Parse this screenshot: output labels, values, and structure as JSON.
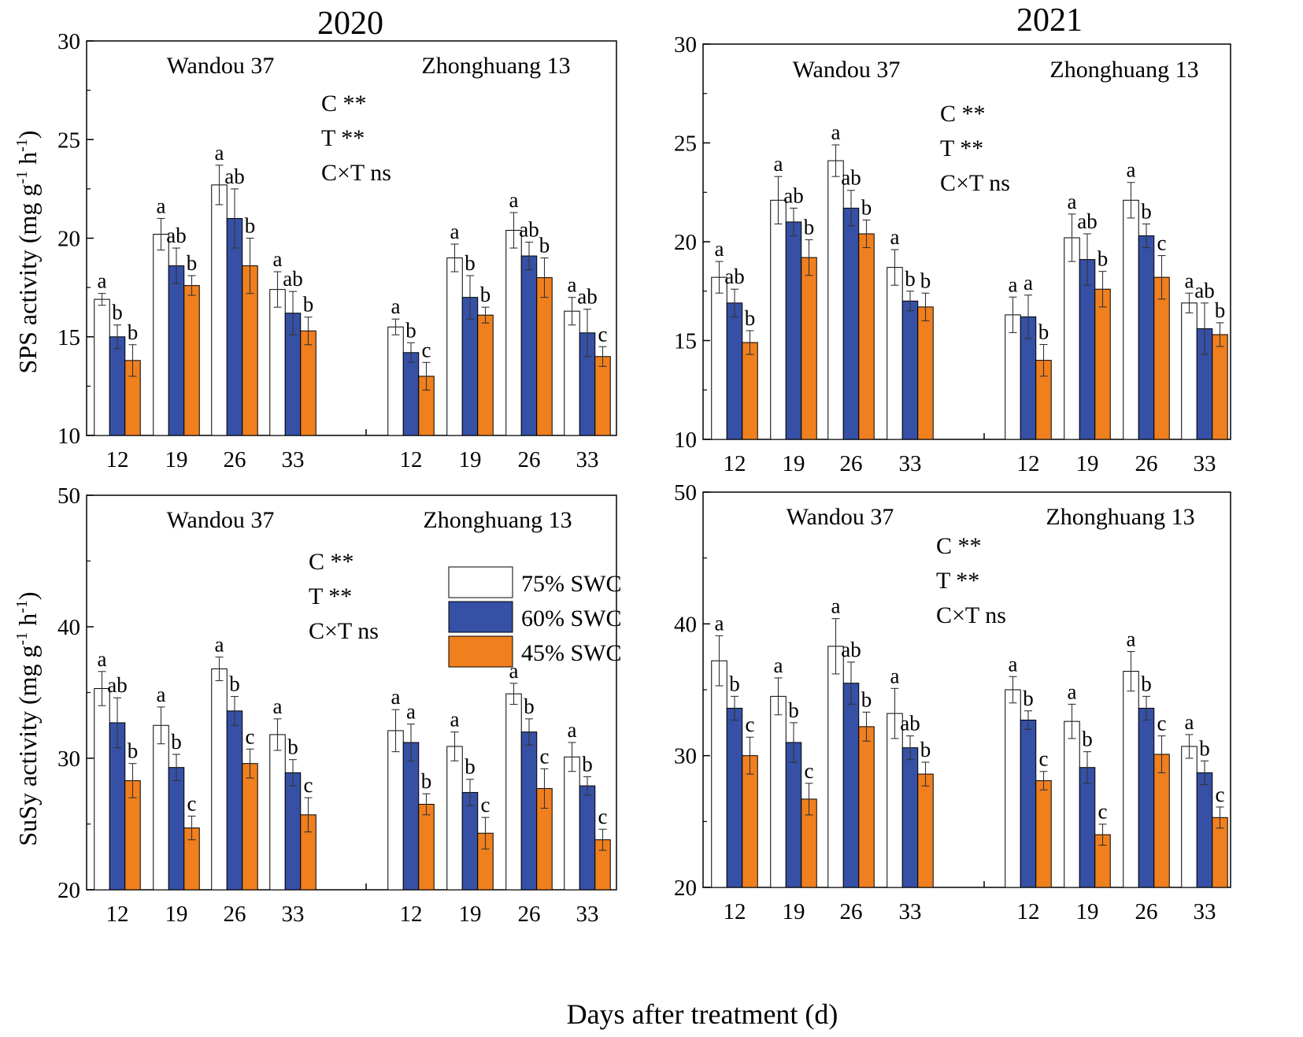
{
  "figure": {
    "x_axis_label": "Days after treatment (d)",
    "colors": {
      "SWC75": "#ffffff",
      "SWC60": "#3550a5",
      "SWC45": "#f07f1e",
      "axis": "#000000"
    }
  },
  "chart_data": [
    {
      "id": "sps-2020",
      "type": "bar",
      "title": "2020",
      "ylabel": "SPS activity (mg g",
      "ylim": [
        10,
        30
      ],
      "yticks": [
        10,
        15,
        20,
        25,
        30
      ],
      "cultivars": [
        "Wandou 37",
        "Zhonghuang 13"
      ],
      "categories": [
        "12",
        "19",
        "26",
        "33"
      ],
      "stats": [
        "C **",
        "T **",
        "C×T ns"
      ],
      "groups": [
        {
          "cultivar": "Wandou 37",
          "day": "12",
          "values": [
            16.9,
            15.0,
            13.8
          ],
          "errors": [
            0.3,
            0.6,
            0.8
          ],
          "letters": [
            "a",
            "b",
            "b"
          ]
        },
        {
          "cultivar": "Wandou 37",
          "day": "19",
          "values": [
            20.2,
            18.6,
            17.6
          ],
          "errors": [
            0.8,
            0.9,
            0.5
          ],
          "letters": [
            "a",
            "ab",
            "b"
          ]
        },
        {
          "cultivar": "Wandou 37",
          "day": "26",
          "values": [
            22.7,
            21.0,
            18.6
          ],
          "errors": [
            1.0,
            1.5,
            1.4
          ],
          "letters": [
            "a",
            "ab",
            "b"
          ]
        },
        {
          "cultivar": "Wandou 37",
          "day": "33",
          "values": [
            17.4,
            16.2,
            15.3
          ],
          "errors": [
            0.9,
            1.1,
            0.7
          ],
          "letters": [
            "a",
            "ab",
            "b"
          ]
        },
        {
          "cultivar": "Zhonghuang 13",
          "day": "12",
          "values": [
            15.5,
            14.2,
            13.0
          ],
          "errors": [
            0.4,
            0.5,
            0.7
          ],
          "letters": [
            "a",
            "b",
            "c"
          ]
        },
        {
          "cultivar": "Zhonghuang 13",
          "day": "19",
          "values": [
            19.0,
            17.0,
            16.1
          ],
          "errors": [
            0.7,
            1.1,
            0.4
          ],
          "letters": [
            "a",
            "b",
            "b"
          ]
        },
        {
          "cultivar": "Zhonghuang 13",
          "day": "26",
          "values": [
            20.4,
            19.1,
            18.0
          ],
          "errors": [
            0.9,
            0.7,
            1.0
          ],
          "letters": [
            "a",
            "ab",
            "b"
          ]
        },
        {
          "cultivar": "Zhonghuang 13",
          "day": "33",
          "values": [
            16.3,
            15.2,
            14.0
          ],
          "errors": [
            0.7,
            1.2,
            0.5
          ],
          "letters": [
            "a",
            "ab",
            "c"
          ]
        }
      ]
    },
    {
      "id": "sps-2021",
      "type": "bar",
      "title": "2021",
      "ylabel": "",
      "ylim": [
        10,
        30
      ],
      "yticks": [
        10,
        15,
        20,
        25,
        30
      ],
      "cultivars": [
        "Wandou 37",
        "Zhonghuang 13"
      ],
      "categories": [
        "12",
        "19",
        "26",
        "33"
      ],
      "stats": [
        "C **",
        "T **",
        "C×T ns"
      ],
      "groups": [
        {
          "cultivar": "Wandou 37",
          "day": "12",
          "values": [
            18.2,
            16.9,
            14.9
          ],
          "errors": [
            0.8,
            0.7,
            0.6
          ],
          "letters": [
            "a",
            "ab",
            "b"
          ]
        },
        {
          "cultivar": "Wandou 37",
          "day": "19",
          "values": [
            22.1,
            21.0,
            19.2
          ],
          "errors": [
            1.2,
            0.7,
            0.9
          ],
          "letters": [
            "a",
            "ab",
            "b"
          ]
        },
        {
          "cultivar": "Wandou 37",
          "day": "26",
          "values": [
            24.1,
            21.7,
            20.4
          ],
          "errors": [
            0.8,
            0.9,
            0.7
          ],
          "letters": [
            "a",
            "ab",
            "b"
          ]
        },
        {
          "cultivar": "Wandou 37",
          "day": "33",
          "values": [
            18.7,
            17.0,
            16.7
          ],
          "errors": [
            0.9,
            0.5,
            0.7
          ],
          "letters": [
            "a",
            "b",
            "b"
          ]
        },
        {
          "cultivar": "Zhonghuang 13",
          "day": "12",
          "values": [
            16.3,
            16.2,
            14.0
          ],
          "errors": [
            0.9,
            1.1,
            0.8
          ],
          "letters": [
            "a",
            "a",
            "b"
          ]
        },
        {
          "cultivar": "Zhonghuang 13",
          "day": "19",
          "values": [
            20.2,
            19.1,
            17.6
          ],
          "errors": [
            1.2,
            1.3,
            0.9
          ],
          "letters": [
            "a",
            "ab",
            "b"
          ]
        },
        {
          "cultivar": "Zhonghuang 13",
          "day": "26",
          "values": [
            22.1,
            20.3,
            18.2
          ],
          "errors": [
            0.9,
            0.6,
            1.1
          ],
          "letters": [
            "a",
            "b",
            "c"
          ]
        },
        {
          "cultivar": "Zhonghuang 13",
          "day": "33",
          "values": [
            16.9,
            15.6,
            15.3
          ],
          "errors": [
            0.5,
            1.3,
            0.6
          ],
          "letters": [
            "a",
            "ab",
            "b"
          ]
        }
      ]
    },
    {
      "id": "susy-2020",
      "type": "bar",
      "title": "",
      "ylabel": "SuSy activity (mg g",
      "ylim": [
        20,
        50
      ],
      "yticks": [
        20,
        30,
        40,
        50
      ],
      "cultivars": [
        "Wandou 37",
        "Zhonghuang 13"
      ],
      "categories": [
        "12",
        "19",
        "26",
        "33"
      ],
      "stats": [
        "C **",
        "T **",
        "C×T ns"
      ],
      "legend": [
        "75% SWC",
        "60% SWC",
        "45% SWC"
      ],
      "groups": [
        {
          "cultivar": "Wandou 37",
          "day": "12",
          "values": [
            35.3,
            32.7,
            28.3
          ],
          "errors": [
            1.3,
            1.9,
            1.3
          ],
          "letters": [
            "a",
            "ab",
            "b"
          ]
        },
        {
          "cultivar": "Wandou 37",
          "day": "19",
          "values": [
            32.5,
            29.3,
            24.7
          ],
          "errors": [
            1.4,
            1.0,
            0.9
          ],
          "letters": [
            "a",
            "b",
            "c"
          ]
        },
        {
          "cultivar": "Wandou 37",
          "day": "26",
          "values": [
            36.8,
            33.6,
            29.6
          ],
          "errors": [
            0.9,
            1.1,
            1.1
          ],
          "letters": [
            "a",
            "b",
            "c"
          ]
        },
        {
          "cultivar": "Wandou 37",
          "day": "33",
          "values": [
            31.8,
            28.9,
            25.7
          ],
          "errors": [
            1.2,
            1.0,
            1.3
          ],
          "letters": [
            "a",
            "b",
            "c"
          ]
        },
        {
          "cultivar": "Zhonghuang 13",
          "day": "12",
          "values": [
            32.1,
            31.2,
            26.5
          ],
          "errors": [
            1.6,
            1.4,
            0.8
          ],
          "letters": [
            "a",
            "a",
            "b"
          ]
        },
        {
          "cultivar": "Zhonghuang 13",
          "day": "19",
          "values": [
            30.9,
            27.4,
            24.3
          ],
          "errors": [
            1.1,
            1.0,
            1.2
          ],
          "letters": [
            "a",
            "b",
            "c"
          ]
        },
        {
          "cultivar": "Zhonghuang 13",
          "day": "26",
          "values": [
            34.9,
            32.0,
            27.7
          ],
          "errors": [
            0.8,
            1.0,
            1.5
          ],
          "letters": [
            "a",
            "b",
            "c"
          ]
        },
        {
          "cultivar": "Zhonghuang 13",
          "day": "33",
          "values": [
            30.1,
            27.9,
            23.8
          ],
          "errors": [
            1.1,
            0.7,
            0.8
          ],
          "letters": [
            "a",
            "b",
            "c"
          ]
        }
      ]
    },
    {
      "id": "susy-2021",
      "type": "bar",
      "title": "",
      "ylabel": "",
      "ylim": [
        20,
        50
      ],
      "yticks": [
        20,
        30,
        40,
        50
      ],
      "cultivars": [
        "Wandou 37",
        "Zhonghuang 13"
      ],
      "categories": [
        "12",
        "19",
        "26",
        "33"
      ],
      "stats": [
        "C **",
        "T **",
        "C×T ns"
      ],
      "groups": [
        {
          "cultivar": "Wandou 37",
          "day": "12",
          "values": [
            37.2,
            33.6,
            30.0
          ],
          "errors": [
            1.9,
            0.9,
            1.4
          ],
          "letters": [
            "a",
            "b",
            "c"
          ]
        },
        {
          "cultivar": "Wandou 37",
          "day": "19",
          "values": [
            34.5,
            31.0,
            26.7
          ],
          "errors": [
            1.4,
            1.5,
            1.2
          ],
          "letters": [
            "a",
            "b",
            "c"
          ]
        },
        {
          "cultivar": "Wandou 37",
          "day": "26",
          "values": [
            38.3,
            35.5,
            32.2
          ],
          "errors": [
            2.1,
            1.6,
            1.1
          ],
          "letters": [
            "a",
            "ab",
            "b"
          ]
        },
        {
          "cultivar": "Wandou 37",
          "day": "33",
          "values": [
            33.2,
            30.6,
            28.6
          ],
          "errors": [
            1.9,
            0.9,
            0.9
          ],
          "letters": [
            "a",
            "ab",
            "b"
          ]
        },
        {
          "cultivar": "Zhonghuang 13",
          "day": "12",
          "values": [
            35.0,
            32.7,
            28.1
          ],
          "errors": [
            1.0,
            0.7,
            0.7
          ],
          "letters": [
            "a",
            "b",
            "c"
          ]
        },
        {
          "cultivar": "Zhonghuang 13",
          "day": "19",
          "values": [
            32.6,
            29.1,
            24.0
          ],
          "errors": [
            1.3,
            1.2,
            0.8
          ],
          "letters": [
            "a",
            "b",
            "c"
          ]
        },
        {
          "cultivar": "Zhonghuang 13",
          "day": "26",
          "values": [
            36.4,
            33.6,
            30.1
          ],
          "errors": [
            1.5,
            0.9,
            1.4
          ],
          "letters": [
            "a",
            "b",
            "c"
          ]
        },
        {
          "cultivar": "Zhonghuang 13",
          "day": "33",
          "values": [
            30.7,
            28.7,
            25.3
          ],
          "errors": [
            0.9,
            0.9,
            0.8
          ],
          "letters": [
            "a",
            "b",
            "c"
          ]
        }
      ]
    }
  ]
}
